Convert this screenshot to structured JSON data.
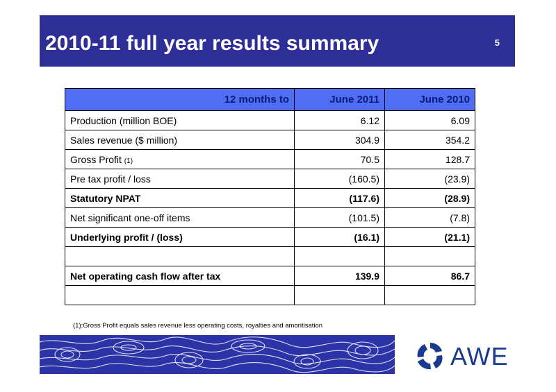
{
  "header": {
    "title": "2010-11 full year results summary",
    "page_number": "5"
  },
  "table": {
    "headers": [
      "12 months to",
      "June 2011",
      "June 2010"
    ],
    "rows": [
      {
        "label": "Production (million BOE)",
        "note": "",
        "v2011": "6.12",
        "v2010": "6.09",
        "bold": false
      },
      {
        "label": "Sales revenue ($ million)",
        "note": "",
        "v2011": "304.9",
        "v2010": "354.2",
        "bold": false
      },
      {
        "label": "Gross Profit",
        "note": "(1)",
        "v2011": "70.5",
        "v2010": "128.7",
        "bold": false
      },
      {
        "label": "Pre tax profit / loss",
        "note": "",
        "v2011": "(160.5)",
        "v2010": "(23.9)",
        "bold": false
      },
      {
        "label": "Statutory NPAT",
        "note": "",
        "v2011": "(117.6)",
        "v2010": "(28.9)",
        "bold": true
      },
      {
        "label": "Net significant  one-off items",
        "note": "",
        "v2011": "(101.5)",
        "v2010": "(7.8)",
        "bold": false
      },
      {
        "label": "Underlying profit / (loss)",
        "note": "",
        "v2011": "(16.1)",
        "v2010": "(21.1)",
        "bold": true
      },
      {
        "label": "",
        "note": "",
        "v2011": "",
        "v2010": "",
        "bold": false
      },
      {
        "label": "Net operating cash flow after tax",
        "note": "",
        "v2011": "139.9",
        "v2010": "86.7",
        "bold": true
      },
      {
        "label": "",
        "note": "",
        "v2011": "",
        "v2010": "",
        "bold": false
      }
    ]
  },
  "footnote": "(1):Gross Profit equals sales revenue less operating costs, royalties and amoritisation",
  "logo": {
    "wordmark": "AWE",
    "icon": "awe-swirl-logo-icon"
  },
  "colors": {
    "header_bg": "#2e2f96",
    "table_header_bg": "#4f6ef4",
    "banner_bg": "#2c33a6",
    "logo_blue": "#1a3a8f"
  }
}
